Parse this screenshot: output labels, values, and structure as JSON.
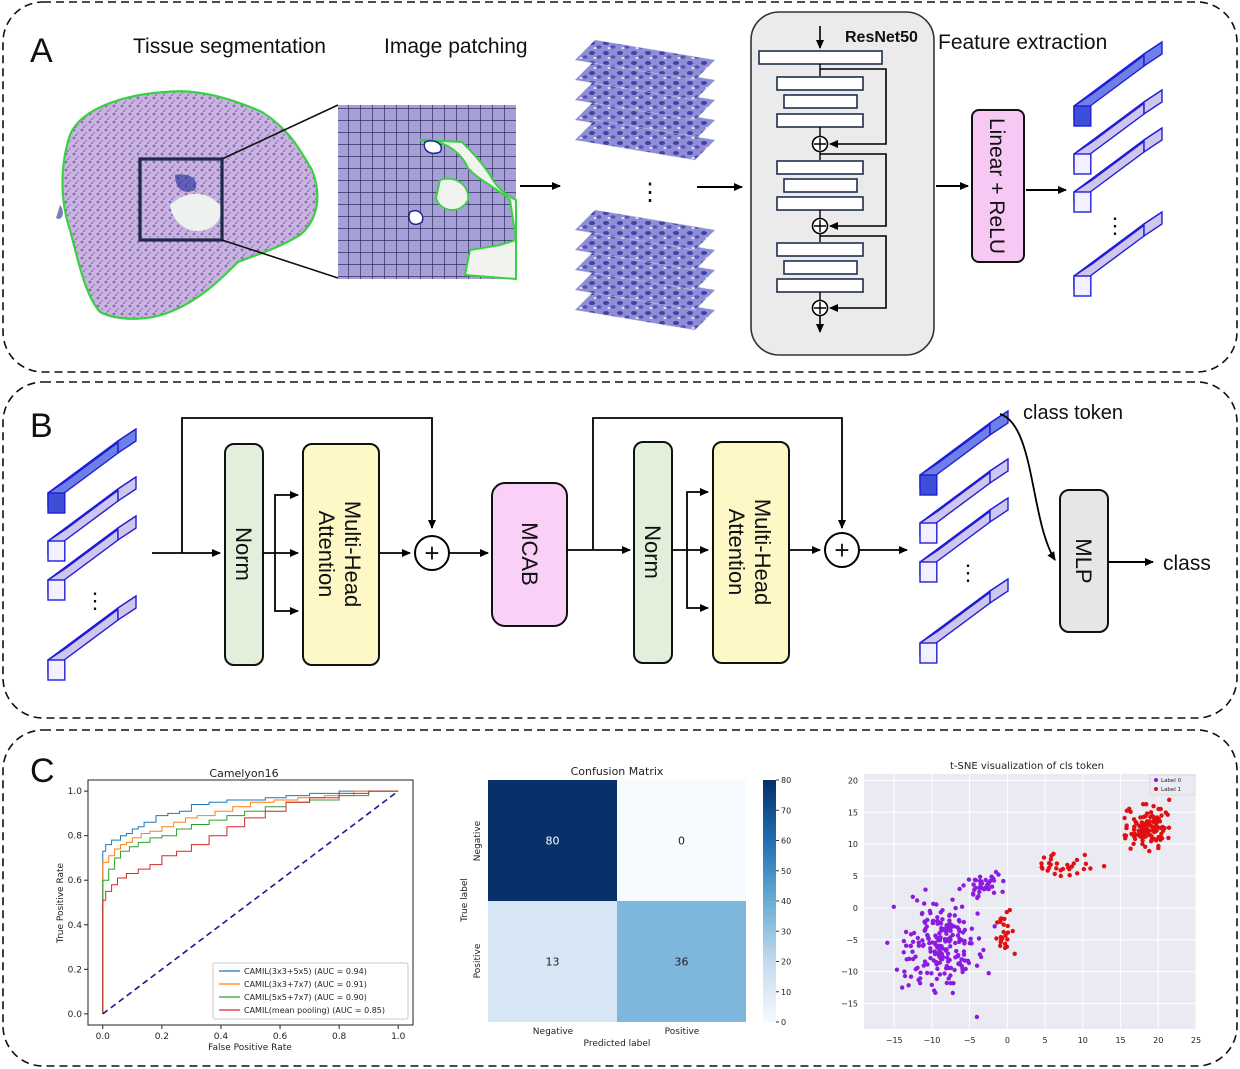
{
  "panelA": {
    "letter": "A",
    "tissue_label": "Tissue segmentation",
    "patching_label": "Image patching",
    "resnet_label": "ResNet50",
    "feature_label": "Feature extraction",
    "linear_label": "Linear + ReLU",
    "ellipsis": "⋮"
  },
  "panelB": {
    "letter": "B",
    "norm1": "Norm",
    "mha1_line1": "Multi-Head",
    "mha1_line2": "Attention",
    "mcab": "MCAB",
    "norm2": "Norm",
    "mha2_line1": "Multi-Head",
    "mha2_line2": "Attention",
    "class_token": "class token",
    "mlp": "MLP",
    "class": "class",
    "plus": "+",
    "ellipsis": "⋮"
  },
  "panelC": {
    "letter": "C",
    "colors": {
      "roc_blue": "#1f77b4",
      "roc_orange": "#ff7f0e",
      "roc_green": "#2ca02c",
      "roc_red": "#d62728",
      "diag": "#1a1a8c",
      "cm_dark": "#08306b",
      "cm_mid": "#6baed6",
      "cm_light": "#dbe9f6",
      "cm_white": "#f7fbff",
      "tsne_bg": "#eaeaf2",
      "label0": "#8a1bdf",
      "label1": "#e01010"
    }
  },
  "chart_data": [
    {
      "type": "line",
      "title": "Camelyon16",
      "xlabel": "False Positive Rate",
      "ylabel": "True Positive Rate",
      "xlim": [
        -0.05,
        1.05
      ],
      "ylim": [
        -0.05,
        1.05
      ],
      "x_ticks": [
        "0.0",
        "0.2",
        "0.4",
        "0.6",
        "0.8",
        "1.0"
      ],
      "y_ticks": [
        "0.0",
        "0.2",
        "0.4",
        "0.6",
        "0.8",
        "1.0"
      ],
      "legend_position": "lower-right",
      "series": [
        {
          "name": "CAMIL(3x3+5x5) (AUC = 0.94)",
          "x": [
            0,
            0,
            0.01,
            0.01,
            0.03,
            0.04,
            0.06,
            0.08,
            0.1,
            0.12,
            0.14,
            0.16,
            0.18,
            0.22,
            0.26,
            0.3,
            0.36,
            0.42,
            0.48,
            0.55,
            0.62,
            0.7,
            0.8,
            1.0
          ],
          "y": [
            0,
            0.73,
            0.73,
            0.76,
            0.78,
            0.78,
            0.8,
            0.81,
            0.83,
            0.84,
            0.86,
            0.86,
            0.89,
            0.9,
            0.91,
            0.94,
            0.95,
            0.96,
            0.96,
            0.97,
            0.98,
            0.99,
            1.0,
            1.0
          ]
        },
        {
          "name": "CAMIL(3x3+7x7) (AUC = 0.91)",
          "x": [
            0,
            0,
            0.02,
            0.04,
            0.06,
            0.08,
            0.1,
            0.13,
            0.16,
            0.2,
            0.24,
            0.28,
            0.32,
            0.38,
            0.44,
            0.5,
            0.58,
            0.66,
            0.75,
            0.85,
            1.0
          ],
          "y": [
            0,
            0.68,
            0.71,
            0.74,
            0.76,
            0.77,
            0.79,
            0.81,
            0.82,
            0.84,
            0.86,
            0.88,
            0.89,
            0.91,
            0.93,
            0.95,
            0.96,
            0.97,
            0.98,
            1.0,
            1.0
          ]
        },
        {
          "name": "CAMIL(5x5+7x7) (AUC = 0.90)",
          "x": [
            0,
            0,
            0.02,
            0.04,
            0.06,
            0.09,
            0.12,
            0.16,
            0.2,
            0.25,
            0.3,
            0.36,
            0.42,
            0.48,
            0.55,
            0.62,
            0.7,
            0.8,
            0.9,
            1.0
          ],
          "y": [
            0,
            0.6,
            0.65,
            0.7,
            0.73,
            0.75,
            0.77,
            0.79,
            0.8,
            0.83,
            0.85,
            0.87,
            0.89,
            0.91,
            0.93,
            0.95,
            0.96,
            0.98,
            1.0,
            1.0
          ]
        },
        {
          "name": "CAMIL(mean pooling) (AUC = 0.85)",
          "x": [
            0,
            0,
            0.01,
            0.03,
            0.05,
            0.08,
            0.12,
            0.16,
            0.2,
            0.25,
            0.3,
            0.36,
            0.42,
            0.48,
            0.55,
            0.62,
            0.7,
            0.8,
            0.9,
            1.0
          ],
          "y": [
            0,
            0.51,
            0.55,
            0.58,
            0.61,
            0.63,
            0.65,
            0.67,
            0.71,
            0.73,
            0.76,
            0.8,
            0.84,
            0.88,
            0.91,
            0.95,
            0.97,
            0.99,
            1.0,
            1.0
          ]
        },
        {
          "name": "",
          "x": [
            0,
            1
          ],
          "y": [
            0,
            1
          ]
        }
      ]
    },
    {
      "type": "heatmap",
      "title": "Confusion Matrix",
      "xlabel": "Predicted label",
      "ylabel": "True label",
      "x_categories": [
        "Negative",
        "Positive"
      ],
      "y_categories": [
        "Negative",
        "Positive"
      ],
      "values": [
        [
          80,
          0
        ],
        [
          13,
          36
        ]
      ],
      "colorbar_ticks": [
        "0",
        "10",
        "20",
        "30",
        "40",
        "50",
        "60",
        "70",
        "80"
      ],
      "colorbar_range": [
        0,
        80
      ]
    },
    {
      "type": "scatter",
      "title": "t-SNE visualization of cls token",
      "xlim": [
        -19,
        25
      ],
      "ylim": [
        -19,
        21
      ],
      "x_ticks": [
        "−15",
        "−10",
        "−5",
        "0",
        "5",
        "10",
        "15",
        "20",
        "25"
      ],
      "y_ticks": [
        "−15",
        "−10",
        "−5",
        "0",
        "5",
        "10",
        "15",
        "20"
      ],
      "legend_position": "top-right",
      "grid": true,
      "series": [
        {
          "name": "Label 0",
          "clusters": [
            {
              "cx": -9,
              "cy": -6,
              "sx": 4.2,
              "sy": 5.5,
              "n": 210
            },
            {
              "cx": -3,
              "cy": 3.5,
              "sx": 2.0,
              "sy": 1.6,
              "n": 40
            }
          ]
        },
        {
          "name": "Label 1",
          "clusters": [
            {
              "cx": 18.5,
              "cy": 12.5,
              "sx": 2.6,
              "sy": 2.6,
              "n": 120
            },
            {
              "cx": 7,
              "cy": 6.5,
              "sx": 3.5,
              "sy": 1.5,
              "n": 30
            },
            {
              "cx": -0.5,
              "cy": -4,
              "sx": 0.9,
              "sy": 4,
              "n": 25
            }
          ]
        }
      ]
    }
  ]
}
